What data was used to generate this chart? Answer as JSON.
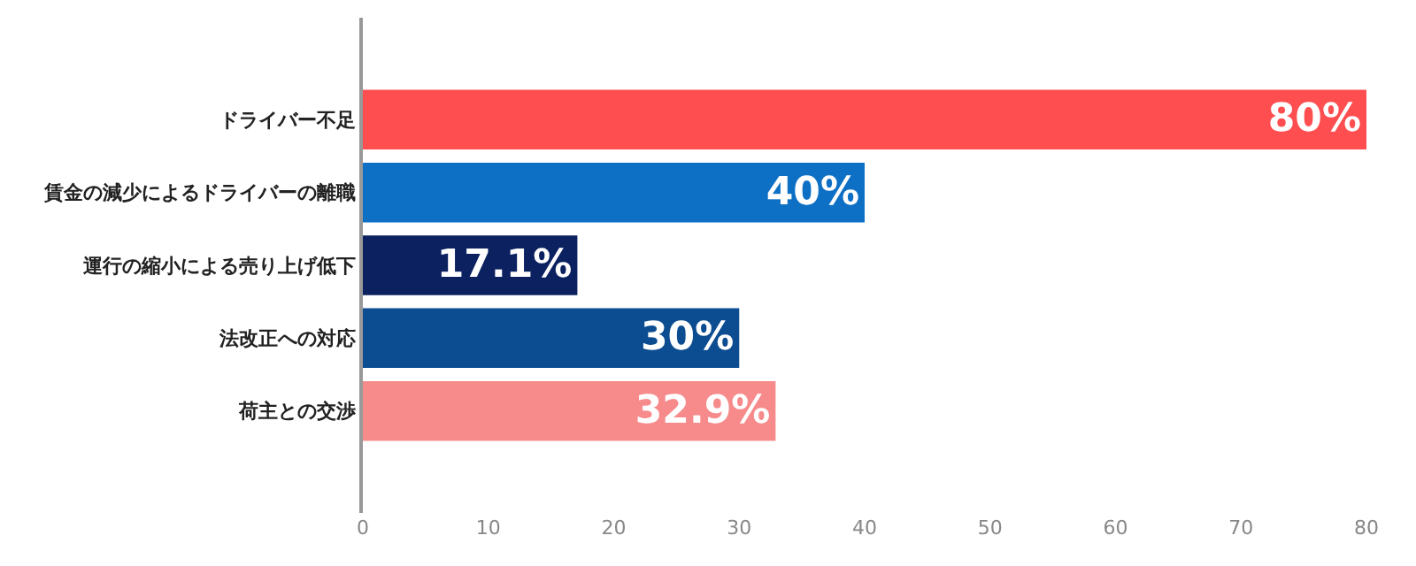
{
  "chart_data": {
    "type": "bar",
    "orientation": "horizontal",
    "categories": [
      "ドライバー不足",
      "賃金の減少によるドライバーの離職",
      "運行の縮小による売り上げ低下",
      "法改正への対応",
      "荷主との交渉"
    ],
    "values": [
      80,
      40,
      17.1,
      30,
      32.9
    ],
    "colors": [
      "#fe4e50",
      "#0d70c4",
      "#0b2160",
      "#0c4d91",
      "#f78b8b"
    ],
    "value_labels": [
      "80%",
      "40%",
      "17.1%",
      "30%",
      "32.9%"
    ],
    "xlim": [
      0,
      80
    ],
    "xticks": [
      0,
      10,
      20,
      30,
      40,
      50,
      60,
      70,
      80
    ],
    "grid": false
  }
}
